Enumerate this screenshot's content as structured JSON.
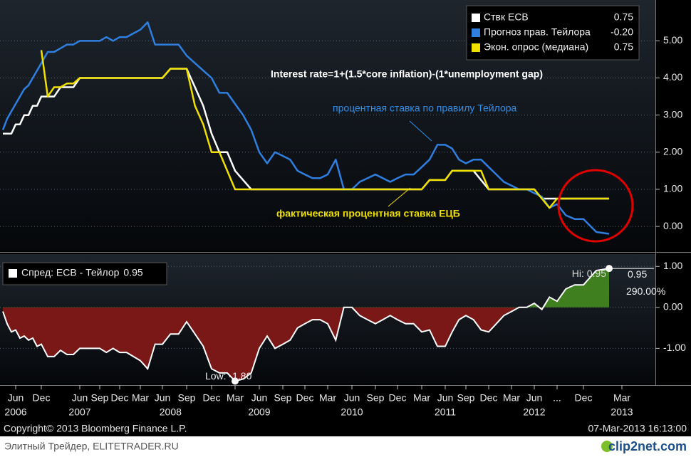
{
  "chart_data": [
    {
      "type": "line",
      "title": "Interest rate=1+(1.5*core inflation)-(1*unemployment gap)",
      "annotations": [
        "процентная ставка по правилу Тейлора",
        "фактическая процентная ставка ЕЦБ"
      ],
      "x": [
        "2006-03",
        "2006-04",
        "2006-05",
        "2006-06",
        "2006-07",
        "2006-08",
        "2006-09",
        "2006-10",
        "2006-11",
        "2006-12",
        "2007-01",
        "2007-02",
        "2007-03",
        "2007-04",
        "2007-05",
        "2007-06",
        "2007-07",
        "2007-08",
        "2007-09",
        "2007-10",
        "2007-11",
        "2007-12",
        "2008-01",
        "2008-02",
        "2008-03",
        "2008-04",
        "2008-05",
        "2008-06",
        "2008-07",
        "2008-08",
        "2008-09",
        "2008-10",
        "2008-11",
        "2008-12",
        "2009-01",
        "2009-02",
        "2009-03",
        "2009-04",
        "2009-05",
        "2009-06",
        "2009-07",
        "2009-08",
        "2009-09",
        "2009-10",
        "2009-11",
        "2009-12",
        "2010-01",
        "2010-02",
        "2010-03",
        "2010-04",
        "2010-05",
        "2010-06",
        "2010-07",
        "2010-08",
        "2010-09",
        "2010-10",
        "2010-11",
        "2010-12",
        "2011-01",
        "2011-02",
        "2011-03",
        "2011-04",
        "2011-05",
        "2011-06",
        "2011-07",
        "2011-08",
        "2011-09",
        "2011-10",
        "2011-11",
        "2011-12",
        "2012-01",
        "2012-02",
        "2012-03",
        "2012-04",
        "2012-05",
        "2012-06",
        "2012-07",
        "2012-08",
        "2012-09",
        "2012-10",
        "2012-11",
        "2012-12",
        "2013-01",
        "2013-02"
      ],
      "series": [
        {
          "name": "Ствк ECB",
          "color": "#ffffff",
          "last_label": "0.75",
          "values": [
            2.5,
            2.5,
            2.5,
            2.75,
            2.75,
            3.0,
            3.0,
            3.25,
            3.25,
            3.5,
            3.5,
            3.5,
            3.75,
            3.75,
            3.75,
            4.0,
            4.0,
            4.0,
            4.0,
            4.0,
            4.0,
            4.0,
            4.0,
            4.0,
            4.0,
            4.0,
            4.0,
            4.0,
            4.25,
            4.25,
            4.25,
            3.75,
            3.25,
            2.5,
            2.0,
            2.0,
            1.5,
            1.25,
            1.0,
            1.0,
            1.0,
            1.0,
            1.0,
            1.0,
            1.0,
            1.0,
            1.0,
            1.0,
            1.0,
            1.0,
            1.0,
            1.0,
            1.0,
            1.0,
            1.0,
            1.0,
            1.0,
            1.0,
            1.0,
            1.0,
            1.0,
            1.25,
            1.25,
            1.25,
            1.5,
            1.5,
            1.5,
            1.5,
            1.25,
            1.0,
            1.0,
            1.0,
            1.0,
            1.0,
            1.0,
            1.0,
            0.75,
            0.75,
            0.75,
            0.75,
            0.75,
            0.75,
            0.75,
            0.75
          ]
        },
        {
          "name": "Прогноз прав. Тейлора",
          "color": "#2f7fe0",
          "last_label": "-0.20",
          "values": [
            2.6,
            2.9,
            3.1,
            3.3,
            3.5,
            3.7,
            3.8,
            4.0,
            4.2,
            4.4,
            4.7,
            4.7,
            4.8,
            4.9,
            4.9,
            5.0,
            5.0,
            5.0,
            5.0,
            5.1,
            5.0,
            5.1,
            5.1,
            5.2,
            5.3,
            5.5,
            4.9,
            4.9,
            4.9,
            4.9,
            4.6,
            4.4,
            4.2,
            4.0,
            3.6,
            3.6,
            3.3,
            3.0,
            2.6,
            2.0,
            1.7,
            2.0,
            1.9,
            1.8,
            1.5,
            1.4,
            1.3,
            1.3,
            1.4,
            1.8,
            1.0,
            1.0,
            1.2,
            1.3,
            1.4,
            1.3,
            1.2,
            1.3,
            1.4,
            1.4,
            1.6,
            1.8,
            2.2,
            2.2,
            2.1,
            1.8,
            1.7,
            1.8,
            1.8,
            1.6,
            1.4,
            1.2,
            1.1,
            1.0,
            1.0,
            0.9,
            0.8,
            0.5,
            0.6,
            0.3,
            0.2,
            0.2,
            -0.15,
            -0.2
          ]
        },
        {
          "name": "Экон. опрос (медиана)",
          "color": "#f0e000",
          "last_label": "0.75",
          "values": [
            null,
            null,
            null,
            null,
            null,
            null,
            null,
            null,
            null,
            4.75,
            3.5,
            3.75,
            3.75,
            3.85,
            3.85,
            4.0,
            4.0,
            4.0,
            4.0,
            4.0,
            4.0,
            4.0,
            4.0,
            4.0,
            4.0,
            4.0,
            4.0,
            4.0,
            4.25,
            4.25,
            4.25,
            3.25,
            2.75,
            2.0,
            2.0,
            1.5,
            1.0,
            1.0,
            1.0,
            1.0,
            1.0,
            1.0,
            1.0,
            1.0,
            1.0,
            1.0,
            1.0,
            1.0,
            1.0,
            1.0,
            1.0,
            1.0,
            1.0,
            1.0,
            1.0,
            1.0,
            1.0,
            1.0,
            1.0,
            1.0,
            1.0,
            1.25,
            1.25,
            1.25,
            1.5,
            1.5,
            1.5,
            1.5,
            1.5,
            1.0,
            1.0,
            1.0,
            1.0,
            1.0,
            1.0,
            1.0,
            0.75,
            0.5,
            0.75,
            0.75,
            0.75,
            0.75,
            0.75,
            0.75
          ]
        }
      ],
      "ylim": [
        -0.65,
        6.1
      ],
      "yticks": [
        {
          "value": 0,
          "label": "0.00"
        },
        {
          "value": 1,
          "label": "1.00"
        },
        {
          "value": 2,
          "label": "2.00"
        },
        {
          "value": 3,
          "label": "3.00"
        },
        {
          "value": 4,
          "label": "4.00"
        },
        {
          "value": 5,
          "label": "5.00"
        }
      ],
      "grid": true,
      "legend": "upper right"
    },
    {
      "type": "area",
      "x": [
        "2006-03",
        "2006-04",
        "2006-05",
        "2006-06",
        "2006-07",
        "2006-08",
        "2006-09",
        "2006-10",
        "2006-11",
        "2006-12",
        "2007-01",
        "2007-02",
        "2007-03",
        "2007-04",
        "2007-05",
        "2007-06",
        "2007-07",
        "2007-08",
        "2007-09",
        "2007-10",
        "2007-11",
        "2007-12",
        "2008-01",
        "2008-02",
        "2008-03",
        "2008-04",
        "2008-05",
        "2008-06",
        "2008-07",
        "2008-08",
        "2008-09",
        "2008-10",
        "2008-11",
        "2008-12",
        "2009-01",
        "2009-02",
        "2009-03",
        "2009-04",
        "2009-05",
        "2009-06",
        "2009-07",
        "2009-08",
        "2009-09",
        "2009-10",
        "2009-11",
        "2009-12",
        "2010-01",
        "2010-02",
        "2010-03",
        "2010-04",
        "2010-05",
        "2010-06",
        "2010-07",
        "2010-08",
        "2010-09",
        "2010-10",
        "2010-11",
        "2010-12",
        "2011-01",
        "2011-02",
        "2011-03",
        "2011-04",
        "2011-05",
        "2011-06",
        "2011-07",
        "2011-08",
        "2011-09",
        "2011-10",
        "2011-11",
        "2011-12",
        "2012-01",
        "2012-02",
        "2012-03",
        "2012-04",
        "2012-05",
        "2012-06",
        "2012-07",
        "2012-08",
        "2012-09",
        "2012-10",
        "2012-11",
        "2012-12",
        "2013-01",
        "2013-02"
      ],
      "series": [
        {
          "name": "Спред: ECB - Тейлор",
          "color": "#ffffff",
          "last_label": "0.95",
          "values": [
            -0.1,
            -0.4,
            -0.6,
            -0.55,
            -0.75,
            -0.7,
            -0.8,
            -0.75,
            -0.95,
            -0.9,
            -1.2,
            -1.2,
            -1.05,
            -1.15,
            -1.15,
            -1.0,
            -1.0,
            -1.0,
            -1.0,
            -1.1,
            -1.0,
            -1.1,
            -1.1,
            -1.2,
            -1.3,
            -1.5,
            -0.9,
            -0.9,
            -0.65,
            -0.65,
            -0.35,
            -0.65,
            -0.95,
            -1.5,
            -1.6,
            -1.6,
            -1.8,
            -1.75,
            -1.6,
            -1.0,
            -0.7,
            -1.0,
            -0.9,
            -0.8,
            -0.5,
            -0.4,
            -0.3,
            -0.3,
            -0.4,
            -0.8,
            0.0,
            0.0,
            -0.2,
            -0.3,
            -0.4,
            -0.3,
            -0.2,
            -0.3,
            -0.4,
            -0.4,
            -0.6,
            -0.55,
            -0.95,
            -0.95,
            -0.6,
            -0.3,
            -0.2,
            -0.3,
            -0.55,
            -0.6,
            -0.4,
            -0.2,
            -0.1,
            0.0,
            0.0,
            0.1,
            -0.05,
            0.25,
            0.15,
            0.45,
            0.55,
            0.55,
            0.9,
            0.95
          ]
        }
      ],
      "positive_color": "#3f7f1f",
      "negative_color": "#7a1818",
      "hi": {
        "x": "2013-02",
        "value": 0.95,
        "label": "Hi: 0.95"
      },
      "low": {
        "x": "2009-03",
        "value": -1.8,
        "label": "Low: -1.80"
      },
      "last_label": "0.95",
      "pct_label": "290.00%",
      "ylim": [
        -1.88,
        1.3
      ],
      "yticks": [
        {
          "value": -1,
          "label": "-1.00"
        },
        {
          "value": 0,
          "label": "0.00"
        },
        {
          "value": 1,
          "label": "1.00"
        }
      ],
      "grid": true,
      "legend": "upper left",
      "xticks": [
        {
          "value": "2006-06",
          "label": "Jun"
        },
        {
          "value": "2006-12",
          "label": "Dec"
        },
        {
          "value": "2007-06",
          "label": "Jun"
        },
        {
          "value": "2007-09",
          "label": "Sep"
        },
        {
          "value": "2007-12",
          "label": "Dec"
        },
        {
          "value": "2008-03",
          "label": "Mar"
        },
        {
          "value": "2008-06",
          "label": "Jun"
        },
        {
          "value": "2008-09",
          "label": "Sep"
        },
        {
          "value": "2008-12",
          "label": "Dec"
        },
        {
          "value": "2009-03",
          "label": "Mar"
        },
        {
          "value": "2009-06",
          "label": "Jun"
        },
        {
          "value": "2009-09",
          "label": "Sep"
        },
        {
          "value": "2009-12",
          "label": "Dec"
        },
        {
          "value": "2010-03",
          "label": "Mar"
        },
        {
          "value": "2010-06",
          "label": "Jun"
        },
        {
          "value": "2010-09",
          "label": "Sep"
        },
        {
          "value": "2010-12",
          "label": "Dec"
        },
        {
          "value": "2011-03",
          "label": "Mar"
        },
        {
          "value": "2011-06",
          "label": "Jun"
        },
        {
          "value": "2011-09",
          "label": "Sep"
        },
        {
          "value": "2011-12",
          "label": "Dec"
        },
        {
          "value": "2012-03",
          "label": "Mar"
        },
        {
          "value": "2012-06",
          "label": "Jun"
        },
        {
          "value": "2012-09",
          "label": "..."
        },
        {
          "value": "2012-12",
          "label": "Dec"
        },
        {
          "value": "2013-03",
          "label": "Mar"
        }
      ],
      "year_labels": [
        {
          "value": "2006-06",
          "label": "2006"
        },
        {
          "value": "2007-06",
          "label": "2007"
        },
        {
          "value": "2008-07",
          "label": "2008"
        },
        {
          "value": "2009-06",
          "label": "2009"
        },
        {
          "value": "2010-06",
          "label": "2010"
        },
        {
          "value": "2011-06",
          "label": "2011"
        },
        {
          "value": "2012-06",
          "label": "2012"
        },
        {
          "value": "2013-03",
          "label": "2013"
        }
      ]
    }
  ],
  "footer": {
    "copyright": "Copyright© 2013 Bloomberg Finance L.P.",
    "timestamp": "07-Mar-2013 16:13:00"
  },
  "watermark": {
    "site": "Элитный Трейдер, ELITETRADER.RU",
    "logo": "clip2net.com"
  }
}
